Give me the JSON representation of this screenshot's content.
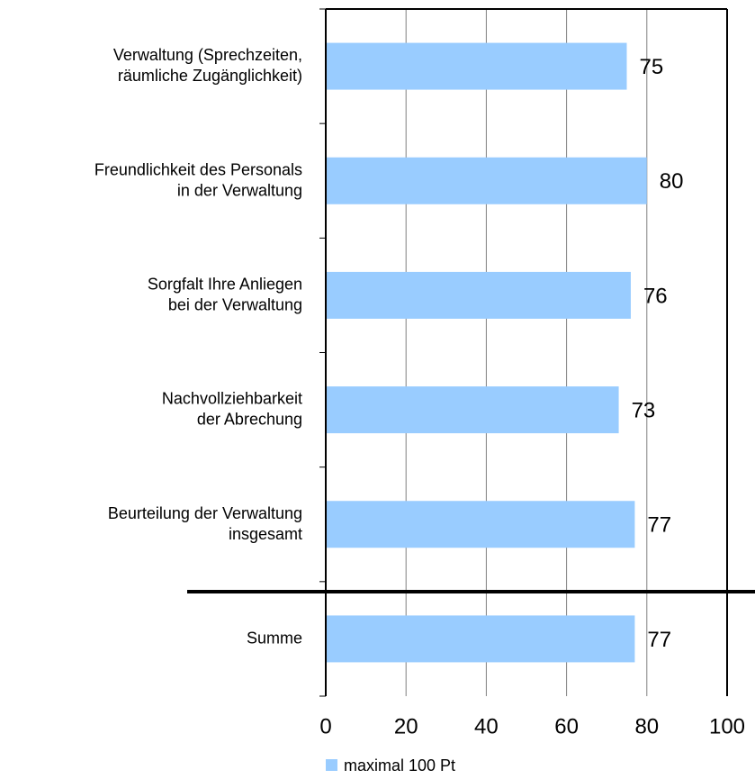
{
  "chart_data": {
    "type": "barh",
    "categories": [
      [
        "Verwaltung (Sprechzeiten,",
        "räumliche Zugänglichkeit)"
      ],
      [
        "Freundlichkeit des Personals",
        "in der Verwaltung"
      ],
      [
        "Sorgfalt Ihre Anliegen",
        "bei der Verwaltung"
      ],
      [
        "Nachvollziehbarkeit",
        "der Abrechung"
      ],
      [
        "Beurteilung der Verwaltung",
        "insgesamt"
      ],
      [
        "Summe"
      ]
    ],
    "series": [
      {
        "name": "maximal 100 Pt",
        "color": "#99ccff",
        "values": [
          75,
          80,
          76,
          73,
          77,
          77
        ]
      }
    ],
    "xlim": [
      0,
      100
    ],
    "xticks": [
      0,
      20,
      40,
      60,
      80,
      100
    ],
    "grid": true,
    "legend": "bottom"
  }
}
